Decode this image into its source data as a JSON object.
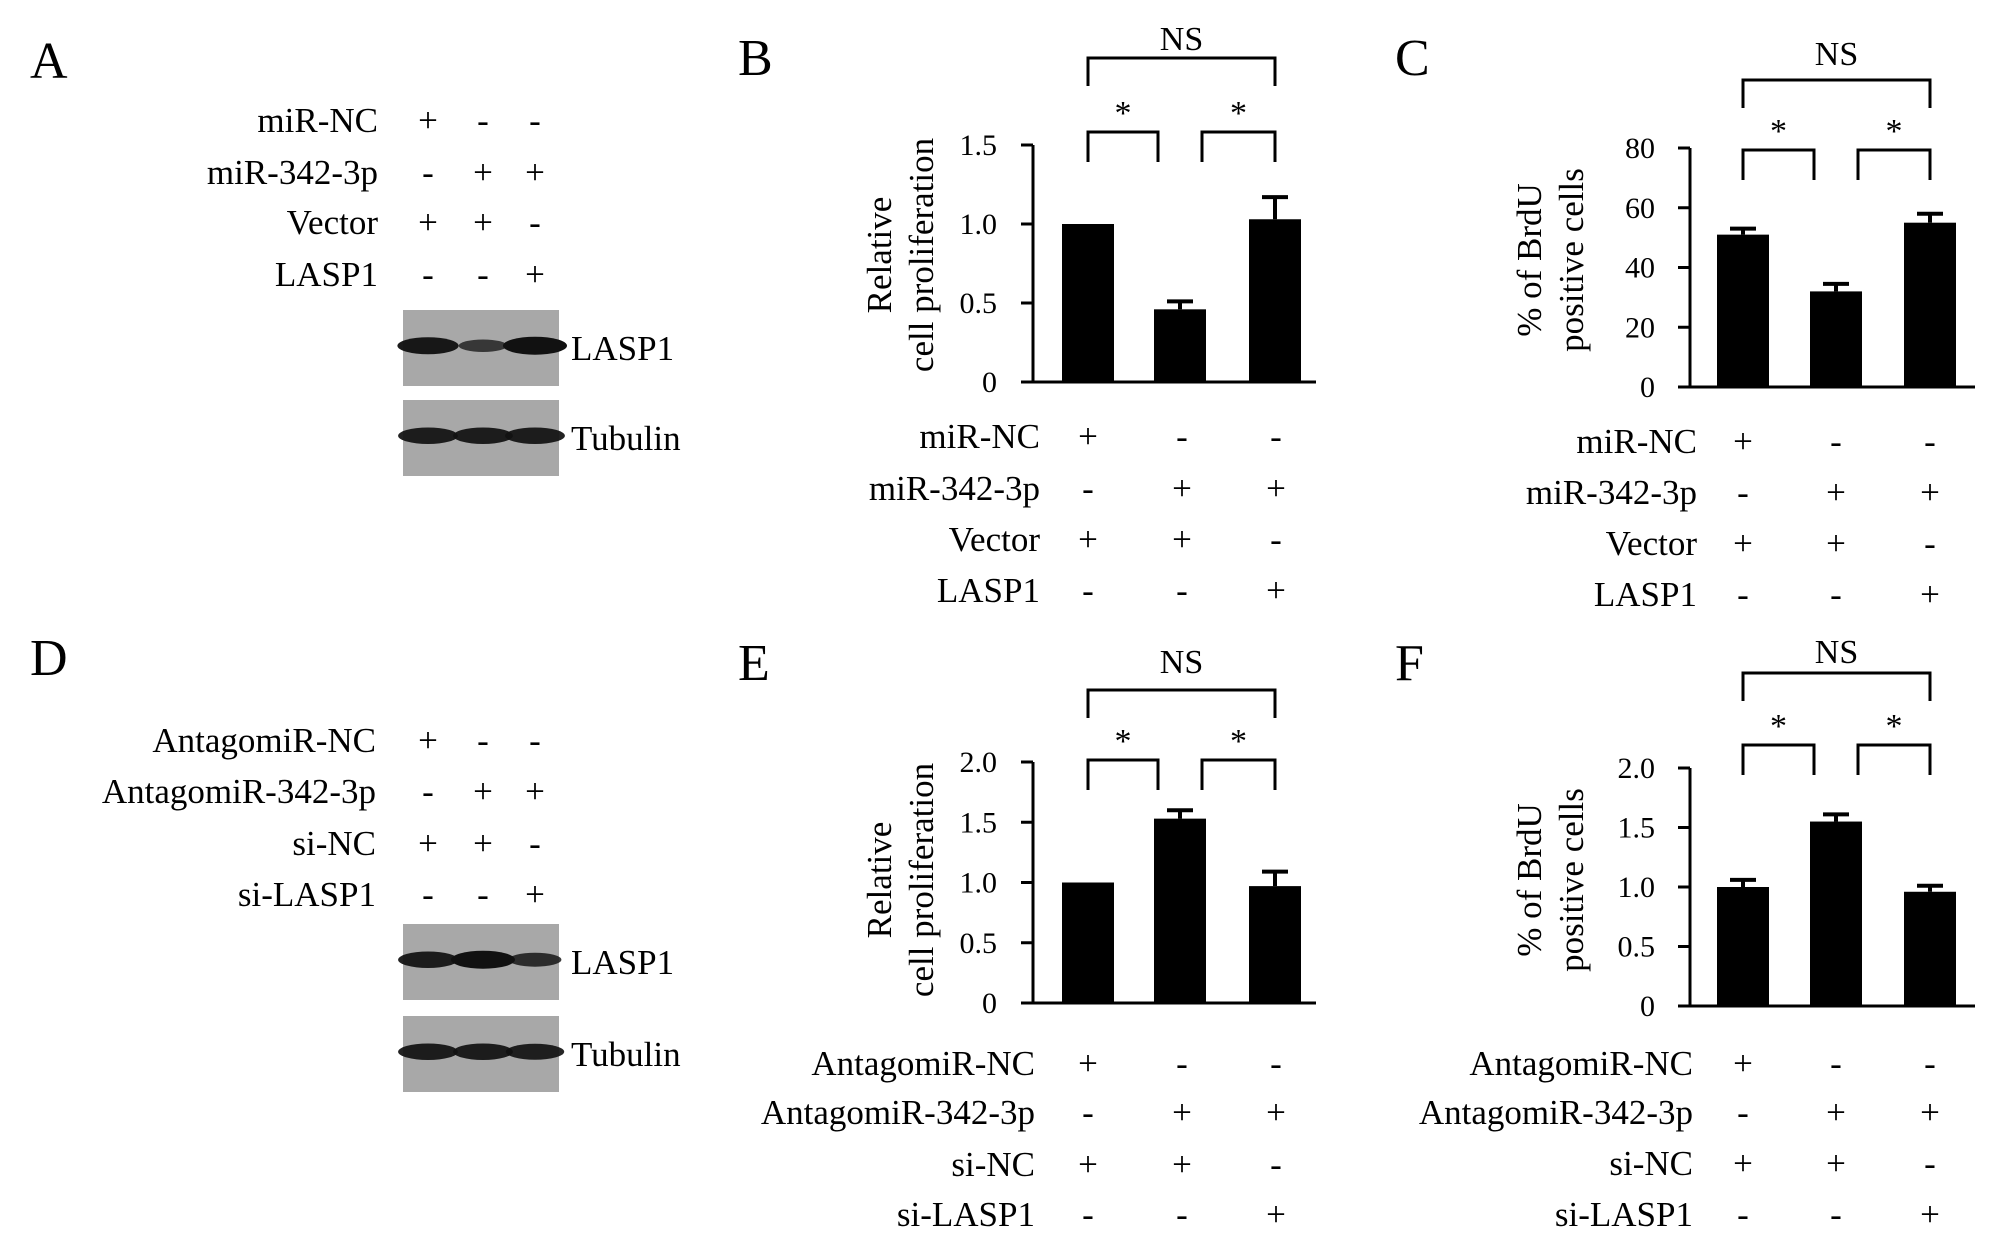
{
  "panels": [
    {
      "id": "A",
      "letter": "A",
      "kind": "blot",
      "rows": [
        {
          "label": "miR-NC",
          "signs": [
            "+",
            "-",
            "-"
          ]
        },
        {
          "label": "miR-342-3p",
          "signs": [
            "-",
            "+",
            "+"
          ]
        },
        {
          "label": "Vector",
          "signs": [
            "+",
            "+",
            "-"
          ]
        },
        {
          "label": "LASP1",
          "signs": [
            "-",
            "-",
            "+"
          ]
        }
      ],
      "blots": [
        {
          "label": "LASP1",
          "intensity": [
            0.9,
            0.45,
            1.0
          ]
        },
        {
          "label": "Tubulin",
          "intensity": [
            0.85,
            0.85,
            0.85
          ]
        }
      ]
    },
    {
      "id": "D",
      "letter": "D",
      "kind": "blot",
      "rows": [
        {
          "label": "AntagomiR-NC",
          "signs": [
            "+",
            "-",
            "-"
          ]
        },
        {
          "label": "AntagomiR-342-3p",
          "signs": [
            "-",
            "+",
            "+"
          ]
        },
        {
          "label": "si-NC",
          "signs": [
            "+",
            "+",
            "-"
          ]
        },
        {
          "label": "si-LASP1",
          "signs": [
            "-",
            "-",
            "+"
          ]
        }
      ],
      "blots": [
        {
          "label": "LASP1",
          "intensity": [
            0.85,
            1.0,
            0.6
          ]
        },
        {
          "label": "Tubulin",
          "intensity": [
            0.85,
            0.85,
            0.8
          ]
        }
      ]
    }
  ],
  "chart_data": [
    {
      "id": "B",
      "letter": "B",
      "type": "bar",
      "ylabel": [
        "Relative",
        "cell proliferation"
      ],
      "ylim": [
        0,
        1.5
      ],
      "yticks": [
        "0",
        "0.5",
        "1.0",
        "1.5"
      ],
      "ytick_values": [
        0,
        0.5,
        1.0,
        1.5
      ],
      "values": [
        1.0,
        0.46,
        1.03
      ],
      "errors": [
        0.0,
        0.05,
        0.14
      ],
      "significance": [
        {
          "from": 0,
          "to": 1,
          "label": "*"
        },
        {
          "from": 1,
          "to": 2,
          "label": "*"
        },
        {
          "from": 0,
          "to": 2,
          "label": "NS"
        }
      ],
      "rows": [
        {
          "label": "miR-NC",
          "signs": [
            "+",
            "-",
            "-"
          ]
        },
        {
          "label": "miR-342-3p",
          "signs": [
            "-",
            "+",
            "+"
          ]
        },
        {
          "label": "Vector",
          "signs": [
            "+",
            "+",
            "-"
          ]
        },
        {
          "label": "LASP1",
          "signs": [
            "-",
            "-",
            "+"
          ]
        }
      ]
    },
    {
      "id": "C",
      "letter": "C",
      "type": "bar",
      "ylabel": [
        "% of BrdU",
        "positive cells"
      ],
      "ylim": [
        0,
        80
      ],
      "yticks": [
        "0",
        "20",
        "40",
        "60",
        "80"
      ],
      "ytick_values": [
        0,
        20,
        40,
        60,
        80
      ],
      "values": [
        51,
        32,
        55
      ],
      "errors": [
        2,
        2.5,
        3
      ],
      "significance": [
        {
          "from": 0,
          "to": 1,
          "label": "*"
        },
        {
          "from": 1,
          "to": 2,
          "label": "*"
        },
        {
          "from": 0,
          "to": 2,
          "label": "NS"
        }
      ],
      "rows": [
        {
          "label": "miR-NC",
          "signs": [
            "+",
            "-",
            "-"
          ]
        },
        {
          "label": "miR-342-3p",
          "signs": [
            "-",
            "+",
            "+"
          ]
        },
        {
          "label": "Vector",
          "signs": [
            "+",
            "+",
            "-"
          ]
        },
        {
          "label": "LASP1",
          "signs": [
            "-",
            "-",
            "+"
          ]
        }
      ]
    },
    {
      "id": "E",
      "letter": "E",
      "type": "bar",
      "ylabel": [
        "Relative",
        "cell proliferation"
      ],
      "ylim": [
        0,
        2.0
      ],
      "yticks": [
        "0",
        "0.5",
        "1.0",
        "1.5",
        "2.0"
      ],
      "ytick_values": [
        0,
        0.5,
        1.0,
        1.5,
        2.0
      ],
      "values": [
        1.0,
        1.53,
        0.97
      ],
      "errors": [
        0.0,
        0.07,
        0.12
      ],
      "significance": [
        {
          "from": 0,
          "to": 1,
          "label": "*"
        },
        {
          "from": 1,
          "to": 2,
          "label": "*"
        },
        {
          "from": 0,
          "to": 2,
          "label": "NS"
        }
      ],
      "rows": [
        {
          "label": "AntagomiR-NC",
          "signs": [
            "+",
            "-",
            "-"
          ]
        },
        {
          "label": "AntagomiR-342-3p",
          "signs": [
            "-",
            "+",
            "+"
          ]
        },
        {
          "label": "si-NC",
          "signs": [
            "+",
            "+",
            "-"
          ]
        },
        {
          "label": "si-LASP1",
          "signs": [
            "-",
            "-",
            "+"
          ]
        }
      ]
    },
    {
      "id": "F",
      "letter": "F",
      "type": "bar",
      "ylabel": [
        "% of BrdU",
        "positive cells"
      ],
      "ylim": [
        0,
        2.0
      ],
      "yticks": [
        "0",
        "0.5",
        "1.0",
        "1.5",
        "2.0"
      ],
      "ytick_values": [
        0,
        0.5,
        1.0,
        1.5,
        2.0
      ],
      "values": [
        1.0,
        1.55,
        0.96
      ],
      "errors": [
        0.06,
        0.06,
        0.05
      ],
      "significance": [
        {
          "from": 0,
          "to": 1,
          "label": "*"
        },
        {
          "from": 1,
          "to": 2,
          "label": "*"
        },
        {
          "from": 0,
          "to": 2,
          "label": "NS"
        }
      ],
      "rows": [
        {
          "label": "AntagomiR-NC",
          "signs": [
            "+",
            "-",
            "-"
          ]
        },
        {
          "label": "AntagomiR-342-3p",
          "signs": [
            "-",
            "+",
            "+"
          ]
        },
        {
          "label": "si-NC",
          "signs": [
            "+",
            "+",
            "-"
          ]
        },
        {
          "label": "si-LASP1",
          "signs": [
            "-",
            "-",
            "+"
          ]
        }
      ]
    }
  ]
}
